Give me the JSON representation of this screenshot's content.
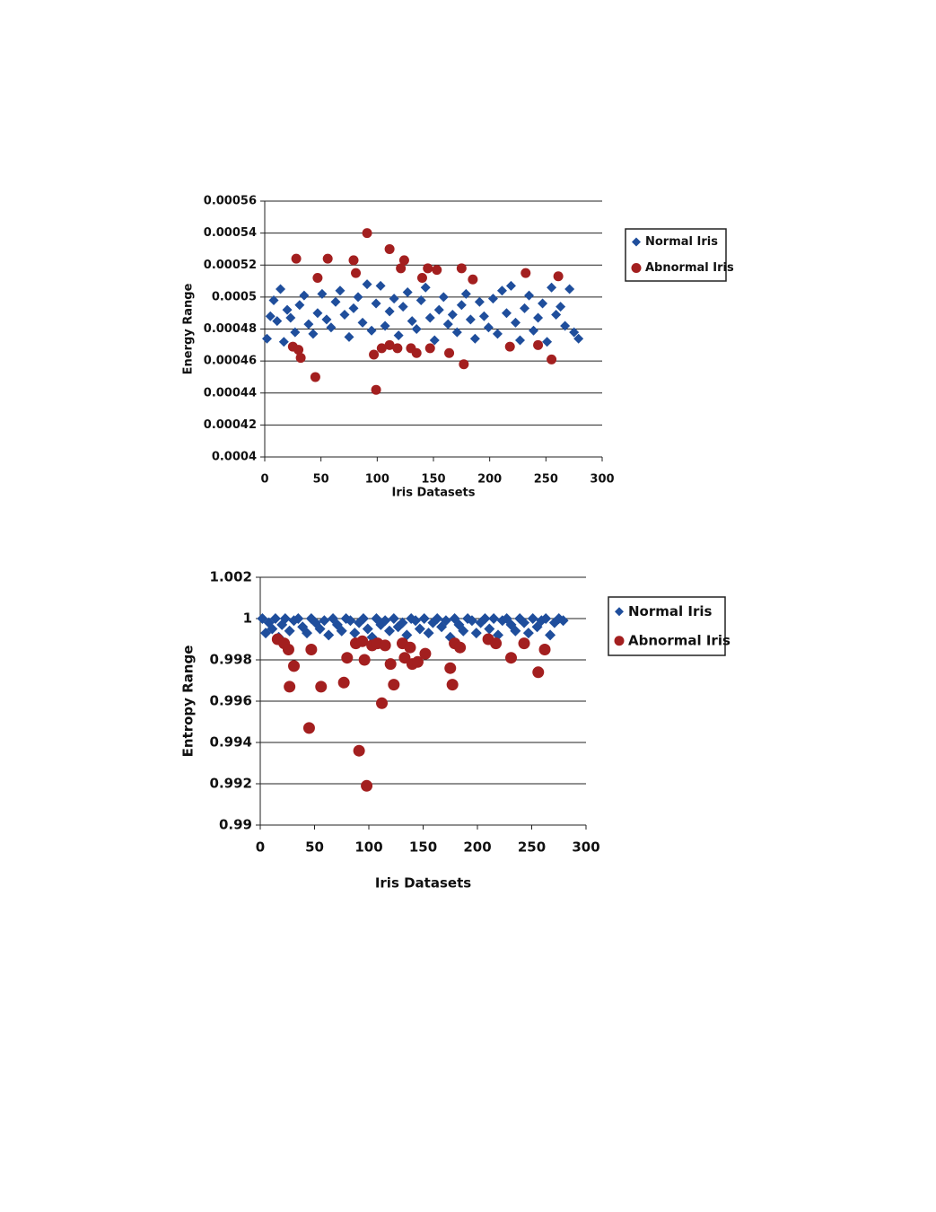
{
  "chart_data": [
    {
      "type": "scatter",
      "ylabel": "Energy Range",
      "xlabel": "Iris Datasets",
      "xlim": [
        0,
        300
      ],
      "xticks": [
        0,
        50,
        100,
        150,
        200,
        250,
        300
      ],
      "ylim": [
        0.0004,
        0.00056
      ],
      "yticks": [
        0.0004,
        0.00042,
        0.00044,
        0.00046,
        0.00048,
        0.0005,
        0.00052,
        0.00054,
        0.00056
      ],
      "grid": true,
      "legend": "right",
      "series": [
        {
          "name": "Normal Iris",
          "color": "#1f4e9c",
          "marker": "diamond",
          "x": [
            2,
            5,
            8,
            11,
            14,
            17,
            20,
            23,
            27,
            31,
            35,
            39,
            43,
            47,
            51,
            55,
            59,
            63,
            67,
            71,
            75,
            79,
            83,
            87,
            91,
            95,
            99,
            103,
            107,
            111,
            115,
            119,
            123,
            127,
            131,
            135,
            139,
            143,
            147,
            151,
            155,
            159,
            163,
            167,
            171,
            175,
            179,
            183,
            187,
            191,
            195,
            199,
            203,
            207,
            211,
            215,
            219,
            223,
            227,
            231,
            235,
            239,
            243,
            247,
            251,
            255,
            259,
            263,
            267,
            271,
            275,
            279
          ],
          "y": [
            0.000474,
            0.000488,
            0.000498,
            0.000485,
            0.000505,
            0.000472,
            0.000492,
            0.000487,
            0.000478,
            0.000495,
            0.000501,
            0.000483,
            0.000477,
            0.00049,
            0.000502,
            0.000486,
            0.000481,
            0.000497,
            0.000504,
            0.000489,
            0.000475,
            0.000493,
            0.0005,
            0.000484,
            0.000508,
            0.000479,
            0.000496,
            0.000507,
            0.000482,
            0.000491,
            0.000499,
            0.000476,
            0.000494,
            0.000503,
            0.000485,
            0.00048,
            0.000498,
            0.000506,
            0.000487,
            0.000473,
            0.000492,
            0.0005,
            0.000483,
            0.000489,
            0.000478,
            0.000495,
            0.000502,
            0.000486,
            0.000474,
            0.000497,
            0.000488,
            0.000481,
            0.000499,
            0.000477,
            0.000504,
            0.00049,
            0.000507,
            0.000484,
            0.000473,
            0.000493,
            0.000501,
            0.000479,
            0.000487,
            0.000496,
            0.000472,
            0.000506,
            0.000489,
            0.000494,
            0.000482,
            0.000505,
            0.000478,
            0.000474
          ]
        },
        {
          "name": "Abnormal Iris",
          "color": "#a31f1f",
          "marker": "circle",
          "x": [
            25,
            28,
            30,
            32,
            45,
            47,
            56,
            79,
            81,
            91,
            97,
            99,
            104,
            111,
            111,
            118,
            121,
            124,
            130,
            135,
            140,
            145,
            147,
            153,
            164,
            175,
            177,
            185,
            218,
            232,
            243,
            255,
            261
          ],
          "y": [
            0.000469,
            0.000524,
            0.000467,
            0.000462,
            0.00045,
            0.000512,
            0.000524,
            0.000523,
            0.000515,
            0.00054,
            0.000464,
            0.000442,
            0.000468,
            0.00053,
            0.00047,
            0.000468,
            0.000518,
            0.000523,
            0.000468,
            0.000465,
            0.000512,
            0.000518,
            0.000468,
            0.000517,
            0.000465,
            0.000518,
            0.000458,
            0.000511,
            0.000469,
            0.000515,
            0.00047,
            0.000461,
            0.000513
          ]
        }
      ]
    },
    {
      "type": "scatter",
      "ylabel": "Entropy Range",
      "xlabel": "Iris Datasets",
      "xlim": [
        0,
        300
      ],
      "xticks": [
        0,
        50,
        100,
        150,
        200,
        250,
        300
      ],
      "ylim": [
        0.99,
        1.002
      ],
      "yticks": [
        0.99,
        0.992,
        0.994,
        0.996,
        0.998,
        1,
        1.002
      ],
      "grid": true,
      "legend": "right",
      "series": [
        {
          "name": "Normal Iris",
          "color": "#1f4e9c",
          "marker": "diamond",
          "x": [
            2,
            5,
            8,
            11,
            14,
            17,
            20,
            23,
            27,
            31,
            35,
            39,
            43,
            47,
            51,
            55,
            59,
            63,
            67,
            71,
            75,
            79,
            83,
            87,
            91,
            95,
            99,
            103,
            107,
            111,
            115,
            119,
            123,
            127,
            131,
            135,
            139,
            143,
            147,
            151,
            155,
            159,
            163,
            167,
            171,
            175,
            179,
            183,
            187,
            191,
            195,
            199,
            203,
            207,
            211,
            215,
            219,
            223,
            227,
            231,
            235,
            239,
            243,
            247,
            251,
            255,
            259,
            263,
            267,
            271,
            275,
            279
          ],
          "y": [
            1,
            0.9993,
            0.9998,
            0.9995,
            1,
            0.9991,
            0.9997,
            1,
            0.9994,
            0.9999,
            1,
            0.9996,
            0.9993,
            1,
            0.9998,
            0.9995,
            0.9999,
            0.9992,
            1,
            0.9997,
            0.9994,
            1,
            0.9999,
            0.9993,
            0.9998,
            1,
            0.9995,
            0.9991,
            1,
            0.9997,
            0.9999,
            0.9994,
            1,
            0.9996,
            0.9998,
            0.9992,
            1,
            0.9999,
            0.9995,
            1,
            0.9993,
            0.9998,
            1,
            0.9996,
            0.9999,
            0.9991,
            1,
            0.9997,
            0.9994,
            1,
            0.9999,
            0.9993,
            0.9998,
            1,
            0.9995,
            1,
            0.9992,
            0.9999,
            1,
            0.9997,
            0.9994,
            1,
            0.9998,
            0.9993,
            1,
            0.9996,
            0.9999,
            1,
            0.9992,
            0.9998,
            1,
            0.9999
          ]
        },
        {
          "name": "Abnormal Iris",
          "color": "#a31f1f",
          "marker": "circle",
          "x": [
            16,
            22,
            26,
            27,
            31,
            45,
            47,
            56,
            77,
            80,
            88,
            91,
            94,
            96,
            98,
            103,
            108,
            112,
            115,
            120,
            123,
            131,
            133,
            138,
            140,
            145,
            152,
            175,
            177,
            179,
            184,
            210,
            217,
            231,
            243,
            256,
            262
          ],
          "y": [
            0.999,
            0.9988,
            0.9985,
            0.9967,
            0.9977,
            0.9947,
            0.9985,
            0.9967,
            0.9969,
            0.9981,
            0.9988,
            0.9936,
            0.9989,
            0.998,
            0.9919,
            0.9987,
            0.9988,
            0.9959,
            0.9987,
            0.9978,
            0.9968,
            0.9988,
            0.9981,
            0.9986,
            0.9978,
            0.9979,
            0.9983,
            0.9976,
            0.9968,
            0.9988,
            0.9986,
            0.999,
            0.9988,
            0.9981,
            0.9988,
            0.9974,
            0.9985
          ]
        }
      ]
    }
  ]
}
